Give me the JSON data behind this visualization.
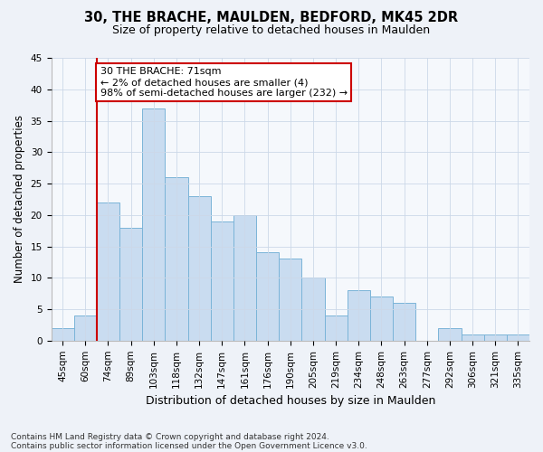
{
  "title1": "30, THE BRACHE, MAULDEN, BEDFORD, MK45 2DR",
  "title2": "Size of property relative to detached houses in Maulden",
  "xlabel": "Distribution of detached houses by size in Maulden",
  "ylabel": "Number of detached properties",
  "categories": [
    "45sqm",
    "60sqm",
    "74sqm",
    "89sqm",
    "103sqm",
    "118sqm",
    "132sqm",
    "147sqm",
    "161sqm",
    "176sqm",
    "190sqm",
    "205sqm",
    "219sqm",
    "234sqm",
    "248sqm",
    "263sqm",
    "277sqm",
    "292sqm",
    "306sqm",
    "321sqm",
    "335sqm"
  ],
  "values": [
    2,
    4,
    22,
    18,
    37,
    26,
    23,
    19,
    20,
    14,
    13,
    10,
    4,
    8,
    7,
    6,
    0,
    2,
    1,
    1,
    1
  ],
  "bar_color": "#c9dcf0",
  "bar_edge_color": "#7ab4d8",
  "vline_color": "#cc0000",
  "vline_x_idx": 2,
  "annotation_text": "30 THE BRACHE: 71sqm\n← 2% of detached houses are smaller (4)\n98% of semi-detached houses are larger (232) →",
  "annotation_box_facecolor": "#ffffff",
  "annotation_box_edgecolor": "#cc0000",
  "ylim": [
    0,
    45
  ],
  "yticks": [
    0,
    5,
    10,
    15,
    20,
    25,
    30,
    35,
    40,
    45
  ],
  "footnote1": "Contains HM Land Registry data © Crown copyright and database right 2024.",
  "footnote2": "Contains public sector information licensed under the Open Government Licence v3.0.",
  "bg_color": "#eef2f8",
  "plot_bg_color": "#f5f8fc",
  "grid_color": "#ccd8e8",
  "title1_fontsize": 10.5,
  "title2_fontsize": 9,
  "ylabel_fontsize": 8.5,
  "xlabel_fontsize": 9,
  "tick_fontsize": 7.5,
  "annot_fontsize": 8,
  "footnote_fontsize": 6.5
}
